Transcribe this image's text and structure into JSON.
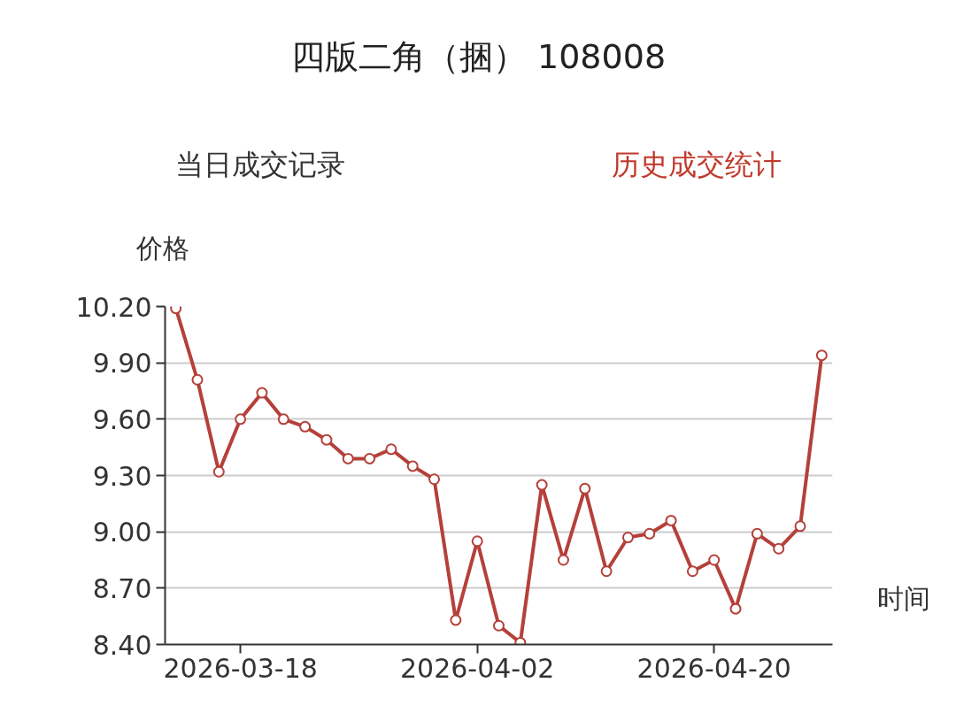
{
  "chart_data": {
    "type": "line",
    "title": "四版二角（捆） 108008",
    "annotations": [
      "当日成交记录",
      "历史成交统计"
    ],
    "ylabel": "价格",
    "xlabel": "时间",
    "categories": [
      null,
      null,
      null,
      "2026-03-18",
      null,
      null,
      null,
      null,
      null,
      null,
      null,
      null,
      null,
      null,
      "2026-04-02",
      null,
      null,
      null,
      null,
      null,
      null,
      null,
      null,
      null,
      null,
      "2026-04-20",
      null,
      null,
      null,
      null,
      null
    ],
    "series": [
      {
        "color": "#b5403a",
        "values": [
          10.19,
          9.81,
          9.32,
          9.6,
          9.74,
          9.6,
          9.56,
          9.49,
          9.39,
          9.39,
          9.44,
          9.35,
          9.28,
          8.53,
          8.95,
          8.5,
          8.41,
          9.25,
          8.85,
          9.23,
          8.79,
          8.97,
          8.99,
          9.06,
          8.79,
          8.85,
          8.59,
          8.99,
          8.91,
          9.03,
          9.94
        ]
      }
    ],
    "ylim": [
      8.4,
      10.2
    ],
    "yticks": [
      {
        "value": 8.4,
        "label": "8.40"
      },
      {
        "value": 8.7,
        "label": "8.70"
      },
      {
        "value": 9.0,
        "label": "9.00"
      },
      {
        "value": 9.3,
        "label": "9.30"
      },
      {
        "value": 9.6,
        "label": "9.60"
      },
      {
        "value": 9.9,
        "label": "9.90"
      },
      {
        "value": 10.2,
        "label": "10.20"
      }
    ],
    "grid": "y",
    "marker": "circle",
    "line_style": "solid"
  }
}
